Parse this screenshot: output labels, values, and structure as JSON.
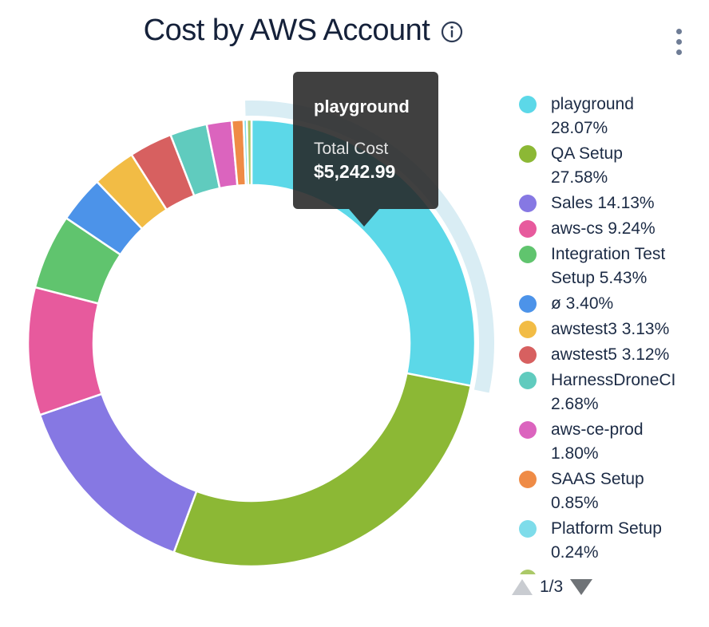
{
  "header": {
    "title": "Cost by AWS Account"
  },
  "tooltip": {
    "name": "playground",
    "metric_label": "Total Cost",
    "value": "$5,242.99"
  },
  "legend": {
    "pagination": {
      "label": "1/3",
      "up_enabled": false,
      "down_enabled": true
    },
    "next_page_peek_color": "#ABC968"
  },
  "chart_data": {
    "type": "pie",
    "subtype": "donut",
    "title": "Cost by AWS Account",
    "unit": "%",
    "start_angle_deg": 0,
    "direction": "clockwise",
    "legend_position": "right",
    "legend_page": "1/3",
    "highlighted": "playground",
    "highlight_halo_color": "#D9EDF4",
    "highlight_tooltip": {
      "name": "playground",
      "metric": "Total Cost",
      "value": "$5,242.99"
    },
    "slices": [
      {
        "label": "playground",
        "pct": 28.07,
        "pct_display": "28.07%",
        "color": "#5CD8E8"
      },
      {
        "label": "QA Setup",
        "pct": 27.58,
        "pct_display": "27.58%",
        "color": "#8CB835"
      },
      {
        "label": "Sales",
        "pct": 14.13,
        "pct_display": "14.13%",
        "color": "#8678E3"
      },
      {
        "label": "aws-cs",
        "pct": 9.24,
        "pct_display": "9.24%",
        "color": "#E75A9D"
      },
      {
        "label": "Integration Test Setup",
        "pct": 5.43,
        "pct_display": "5.43%",
        "color": "#60C46E"
      },
      {
        "label": "ø",
        "pct": 3.4,
        "pct_display": "3.40%",
        "color": "#4C93E9"
      },
      {
        "label": "awstest3",
        "pct": 3.13,
        "pct_display": "3.13%",
        "color": "#F2BC45"
      },
      {
        "label": "awstest5",
        "pct": 3.12,
        "pct_display": "3.12%",
        "color": "#D76060"
      },
      {
        "label": "HarnessDroneCI",
        "pct": 2.68,
        "pct_display": "2.68%",
        "color": "#60CBBE"
      },
      {
        "label": "aws-ce-prod",
        "pct": 1.8,
        "pct_display": "1.80%",
        "color": "#DB64BE"
      },
      {
        "label": "SAAS Setup",
        "pct": 0.85,
        "pct_display": "0.85%",
        "color": "#EF8B46"
      },
      {
        "label": "Platform Setup",
        "pct": 0.24,
        "pct_display": "0.24%",
        "color": "#7EDCEA"
      },
      {
        "label": "",
        "pct": 0.33,
        "pct_display": "",
        "color": "#ABC968",
        "in_visible_legend": false
      }
    ]
  }
}
